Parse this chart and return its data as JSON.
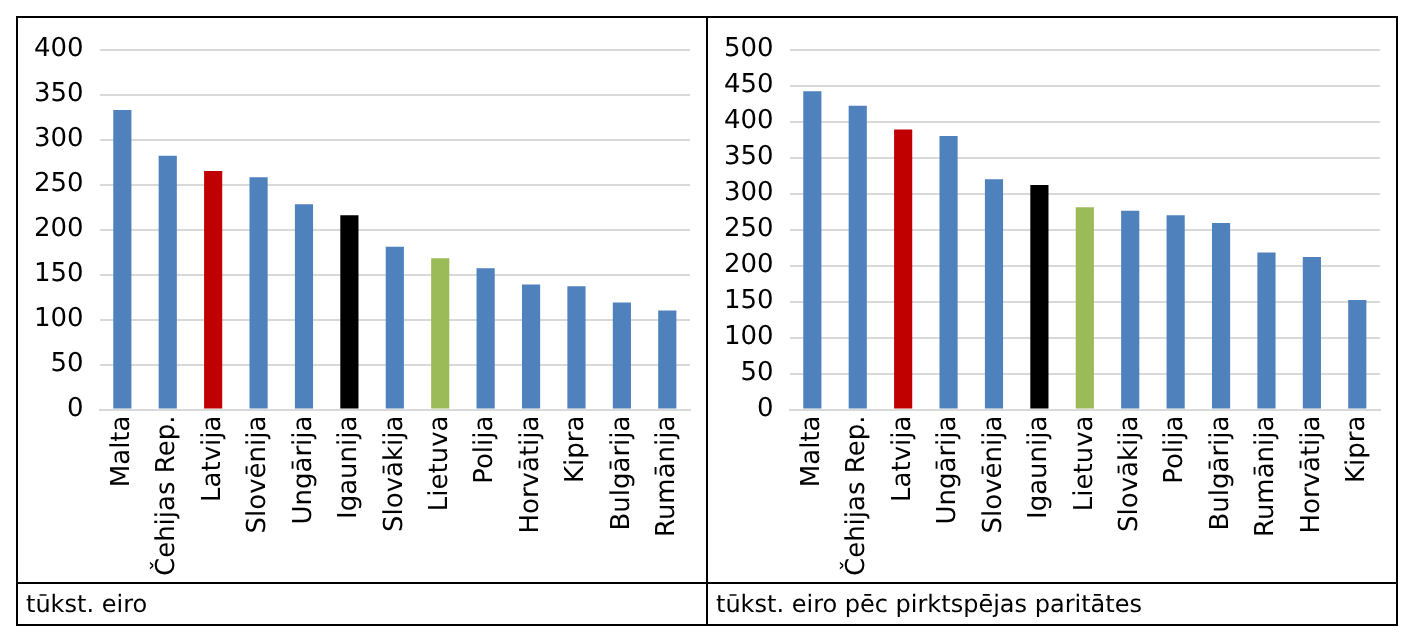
{
  "chart_data": [
    {
      "type": "bar",
      "categories": [
        "Malta",
        "Čehijas Rep.",
        "Latvija",
        "Slovēnija",
        "Ungārija",
        "Igaunija",
        "Slovākija",
        "Lietuva",
        "Polija",
        "Horvātija",
        "Kipra",
        "Bulgārija",
        "Rumānija"
      ],
      "values": [
        333,
        282,
        265,
        258,
        228,
        216,
        181,
        168,
        157,
        139,
        137,
        119,
        110
      ],
      "colors": [
        "#4f81bd",
        "#4f81bd",
        "#c00000",
        "#4f81bd",
        "#4f81bd",
        "#000000",
        "#4f81bd",
        "#9bbb59",
        "#4f81bd",
        "#4f81bd",
        "#4f81bd",
        "#4f81bd",
        "#4f81bd"
      ],
      "ylim": [
        0,
        400
      ],
      "yticks": [
        0,
        50,
        100,
        150,
        200,
        250,
        300,
        350,
        400
      ],
      "grid": "y",
      "legend": false,
      "annotations": [
        "tūkst. eiro"
      ]
    },
    {
      "type": "bar",
      "categories": [
        "Malta",
        "Čehijas Rep.",
        "Latvija",
        "Ungārija",
        "Slovēnija",
        "Igaunija",
        "Lietuva",
        "Slovākija",
        "Polija",
        "Bulgārija",
        "Rumānija",
        "Horvātija",
        "Kipra"
      ],
      "values": [
        442,
        422,
        389,
        380,
        320,
        312,
        281,
        276,
        270,
        259,
        218,
        212,
        152
      ],
      "colors": [
        "#4f81bd",
        "#4f81bd",
        "#c00000",
        "#4f81bd",
        "#4f81bd",
        "#000000",
        "#9bbb59",
        "#4f81bd",
        "#4f81bd",
        "#4f81bd",
        "#4f81bd",
        "#4f81bd",
        "#4f81bd"
      ],
      "ylim": [
        0,
        500
      ],
      "yticks": [
        0,
        50,
        100,
        150,
        200,
        250,
        300,
        350,
        400,
        450,
        500
      ],
      "grid": "y",
      "legend": false,
      "annotations": [
        "tūkst. eiro pēc pirktspējas paritātes"
      ]
    }
  ]
}
